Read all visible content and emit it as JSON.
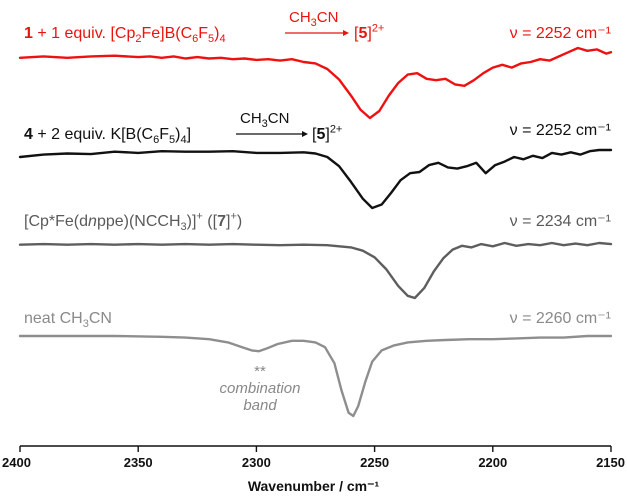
{
  "chart_data": {
    "type": "line",
    "xlabel": "Wavenumber / cm⁻¹",
    "xlim": [
      2400,
      2150
    ],
    "x_ticks": [
      "2400",
      "2350",
      "2300",
      "2250",
      "2200",
      "2150"
    ],
    "x_tick_values": [
      2400,
      2350,
      2300,
      2250,
      2200,
      2150
    ],
    "grid": false,
    "annotation": {
      "marker": "**",
      "text_line1": "combination",
      "text_line2": "band",
      "x": 2300
    },
    "series": [
      {
        "name": "1 + 1 equiv. [Cp2Fe]B(C6F5)4 → [5]2+",
        "color": "#ee1111",
        "peak_label": "ν = 2252 cm⁻¹",
        "points": [
          [
            2400,
            0.14
          ],
          [
            2390,
            0.12
          ],
          [
            2380,
            0.14
          ],
          [
            2370,
            0.12
          ],
          [
            2360,
            0.11
          ],
          [
            2350,
            0.13
          ],
          [
            2345,
            0.12
          ],
          [
            2340,
            0.14
          ],
          [
            2335,
            0.12
          ],
          [
            2330,
            0.15
          ],
          [
            2325,
            0.13
          ],
          [
            2320,
            0.15
          ],
          [
            2315,
            0.14
          ],
          [
            2310,
            0.16
          ],
          [
            2305,
            0.15
          ],
          [
            2300,
            0.17
          ],
          [
            2295,
            0.16
          ],
          [
            2290,
            0.18
          ],
          [
            2285,
            0.16
          ],
          [
            2280,
            0.2
          ],
          [
            2275,
            0.22
          ],
          [
            2270,
            0.3
          ],
          [
            2265,
            0.45
          ],
          [
            2260,
            0.68
          ],
          [
            2256,
            0.88
          ],
          [
            2252,
            1.0
          ],
          [
            2248,
            0.9
          ],
          [
            2244,
            0.68
          ],
          [
            2240,
            0.5
          ],
          [
            2236,
            0.38
          ],
          [
            2232,
            0.36
          ],
          [
            2228,
            0.44
          ],
          [
            2224,
            0.46
          ],
          [
            2220,
            0.44
          ],
          [
            2216,
            0.52
          ],
          [
            2212,
            0.54
          ],
          [
            2208,
            0.46
          ],
          [
            2204,
            0.36
          ],
          [
            2200,
            0.28
          ],
          [
            2196,
            0.24
          ],
          [
            2192,
            0.28
          ],
          [
            2188,
            0.22
          ],
          [
            2184,
            0.2
          ],
          [
            2180,
            0.16
          ],
          [
            2176,
            0.18
          ],
          [
            2172,
            0.12
          ],
          [
            2168,
            0.06
          ],
          [
            2164,
            0.0
          ],
          [
            2160,
            0.04
          ],
          [
            2156,
            0.02
          ],
          [
            2152,
            0.08
          ],
          [
            2150,
            0.06
          ]
        ]
      },
      {
        "name": "4 + 2 equiv. K[B(C6F5)4] → [5]2+",
        "color": "#111111",
        "peak_label": "ν = 2252 cm⁻¹",
        "points": [
          [
            2400,
            0.12
          ],
          [
            2390,
            0.08
          ],
          [
            2380,
            0.06
          ],
          [
            2370,
            0.07
          ],
          [
            2360,
            0.03
          ],
          [
            2350,
            0.05
          ],
          [
            2340,
            0.02
          ],
          [
            2330,
            0.03
          ],
          [
            2320,
            0.03
          ],
          [
            2310,
            0.02
          ],
          [
            2300,
            0.05
          ],
          [
            2290,
            0.05
          ],
          [
            2280,
            0.04
          ],
          [
            2275,
            0.06
          ],
          [
            2270,
            0.12
          ],
          [
            2265,
            0.28
          ],
          [
            2260,
            0.55
          ],
          [
            2255,
            0.84
          ],
          [
            2251,
            1.0
          ],
          [
            2247,
            0.94
          ],
          [
            2243,
            0.74
          ],
          [
            2239,
            0.52
          ],
          [
            2235,
            0.4
          ],
          [
            2231,
            0.38
          ],
          [
            2227,
            0.26
          ],
          [
            2223,
            0.22
          ],
          [
            2219,
            0.3
          ],
          [
            2215,
            0.32
          ],
          [
            2211,
            0.28
          ],
          [
            2207,
            0.22
          ],
          [
            2203,
            0.4
          ],
          [
            2199,
            0.26
          ],
          [
            2195,
            0.2
          ],
          [
            2191,
            0.12
          ],
          [
            2187,
            0.16
          ],
          [
            2183,
            0.1
          ],
          [
            2179,
            0.14
          ],
          [
            2175,
            0.05
          ],
          [
            2171,
            0.08
          ],
          [
            2167,
            0.04
          ],
          [
            2163,
            0.08
          ],
          [
            2159,
            0.02
          ],
          [
            2155,
            0.0
          ],
          [
            2150,
            0.0
          ]
        ]
      },
      {
        "name": "[Cp*Fe(dnppe)(NCCH3)]+ ([7]+)",
        "color": "#5e5e5e",
        "peak_label": "ν = 2234 cm⁻¹",
        "points": [
          [
            2400,
            0.03
          ],
          [
            2390,
            0.02
          ],
          [
            2380,
            0.03
          ],
          [
            2370,
            0.02
          ],
          [
            2360,
            0.03
          ],
          [
            2350,
            0.02
          ],
          [
            2340,
            0.03
          ],
          [
            2330,
            0.02
          ],
          [
            2320,
            0.03
          ],
          [
            2310,
            0.02
          ],
          [
            2300,
            0.03
          ],
          [
            2290,
            0.04
          ],
          [
            2280,
            0.03
          ],
          [
            2270,
            0.04
          ],
          [
            2265,
            0.06
          ],
          [
            2260,
            0.08
          ],
          [
            2255,
            0.14
          ],
          [
            2250,
            0.26
          ],
          [
            2245,
            0.48
          ],
          [
            2240,
            0.78
          ],
          [
            2236,
            0.96
          ],
          [
            2233,
            1.0
          ],
          [
            2229,
            0.82
          ],
          [
            2225,
            0.52
          ],
          [
            2221,
            0.28
          ],
          [
            2217,
            0.12
          ],
          [
            2213,
            0.05
          ],
          [
            2209,
            0.08
          ],
          [
            2205,
            0.02
          ],
          [
            2200,
            0.06
          ],
          [
            2195,
            0.0
          ],
          [
            2190,
            0.05
          ],
          [
            2185,
            0.02
          ],
          [
            2180,
            0.04
          ],
          [
            2175,
            0.0
          ],
          [
            2170,
            0.04
          ],
          [
            2165,
            0.01
          ],
          [
            2160,
            0.04
          ],
          [
            2155,
            0.0
          ],
          [
            2150,
            0.02
          ]
        ]
      },
      {
        "name": "neat CH3CN",
        "color": "#8e8e8e",
        "peak_label": "ν = 2260 cm⁻¹",
        "points": [
          [
            2400,
            0.0
          ],
          [
            2380,
            0.0
          ],
          [
            2360,
            0.0
          ],
          [
            2340,
            0.01
          ],
          [
            2330,
            0.02
          ],
          [
            2320,
            0.04
          ],
          [
            2312,
            0.08
          ],
          [
            2306,
            0.14
          ],
          [
            2302,
            0.18
          ],
          [
            2299,
            0.19
          ],
          [
            2296,
            0.16
          ],
          [
            2291,
            0.1
          ],
          [
            2285,
            0.06
          ],
          [
            2280,
            0.06
          ],
          [
            2275,
            0.08
          ],
          [
            2271,
            0.14
          ],
          [
            2267,
            0.34
          ],
          [
            2264,
            0.68
          ],
          [
            2261,
            0.96
          ],
          [
            2259,
            1.0
          ],
          [
            2257,
            0.88
          ],
          [
            2254,
            0.58
          ],
          [
            2251,
            0.32
          ],
          [
            2247,
            0.18
          ],
          [
            2242,
            0.12
          ],
          [
            2236,
            0.08
          ],
          [
            2228,
            0.06
          ],
          [
            2220,
            0.05
          ],
          [
            2210,
            0.04
          ],
          [
            2200,
            0.04
          ],
          [
            2190,
            0.03
          ],
          [
            2180,
            0.02
          ],
          [
            2170,
            0.02
          ],
          [
            2160,
            0.0
          ],
          [
            2150,
            0.0
          ]
        ]
      }
    ]
  },
  "labels": {
    "s1_comp": "1",
    "s1_rest": " + 1 equiv. [Cp",
    "s1_sub2": "2",
    "s1_mid": "Fe]B(C",
    "s1_sub6": "6",
    "s1_F": "F",
    "s1_sub5": "5",
    "s1_close": ")",
    "s1_sub4": "4",
    "s1_arrow_ch": "CH",
    "s1_arrow_3": "3",
    "s1_arrow_cn": "CN",
    "s1_prod_open": "[",
    "s1_prod": "5",
    "s1_prod_close": "]",
    "s1_charge": "2+",
    "s2_comp": "4",
    "s2_rest": " + 2 equiv. K[B(C",
    "s2_sub6": "6",
    "s2_F": "F",
    "s2_sub5": "5",
    "s2_close": ")",
    "s2_sub4": "4",
    "s2_end": "]",
    "s2_arrow_ch": "CH",
    "s2_arrow_3": "3",
    "s2_arrow_cn": "CN",
    "s2_prod_open": "[",
    "s2_prod": "5",
    "s2_prod_close": "]",
    "s2_charge": "2+",
    "s3_a": "[Cp*Fe(d",
    "s3_n": "n",
    "s3_b": "ppe)(NCCH",
    "s3_sub3": "3",
    "s3_c": ")]",
    "s3_plus": "+",
    "s3_d": " ([",
    "s3_seven": "7",
    "s3_e": "]",
    "s3_plus2": "+",
    "s3_f": ")",
    "s4_a": "neat CH",
    "s4_sub3": "3",
    "s4_b": "CN"
  }
}
